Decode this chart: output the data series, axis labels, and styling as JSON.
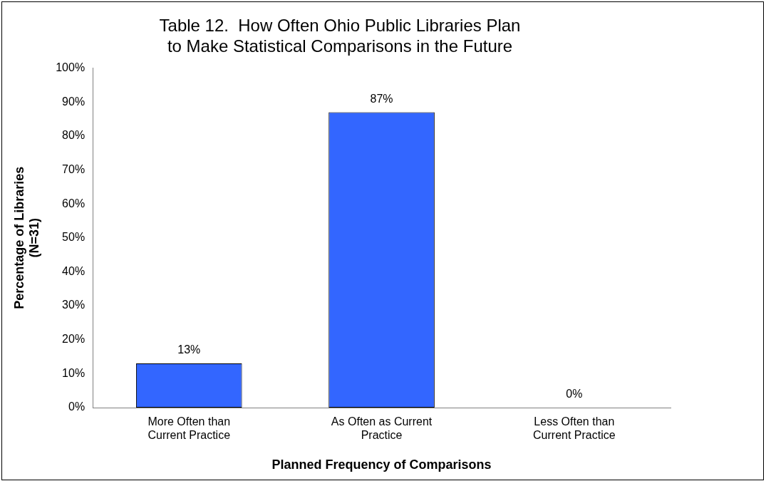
{
  "chart_data": {
    "type": "bar",
    "title": "Table 12.  How Often Ohio Public Libraries Plan\nto Make Statistical Comparisons in the Future",
    "xlabel": "Planned Frequency of Comparisons",
    "ylabel": "Percentage of Libraries\n(N=31)",
    "categories": [
      "More Often than\nCurrent Practice",
      "As Often as Current\nPractice",
      "Less Often than\nCurrent Practice"
    ],
    "values": [
      13,
      87,
      0
    ],
    "value_labels": [
      "13%",
      "87%",
      "0%"
    ],
    "color": "#3366ff",
    "ylim": [
      0,
      100
    ],
    "yticks": [
      {
        "value": 0,
        "label": "0%"
      },
      {
        "value": 10,
        "label": "10%"
      },
      {
        "value": 20,
        "label": "20%"
      },
      {
        "value": 30,
        "label": "30%"
      },
      {
        "value": 40,
        "label": "40%"
      },
      {
        "value": 50,
        "label": "50%"
      },
      {
        "value": 60,
        "label": "60%"
      },
      {
        "value": 70,
        "label": "70%"
      },
      {
        "value": 80,
        "label": "80%"
      },
      {
        "value": 90,
        "label": "90%"
      },
      {
        "value": 100,
        "label": "100%"
      }
    ],
    "grid": false,
    "legend": false
  }
}
